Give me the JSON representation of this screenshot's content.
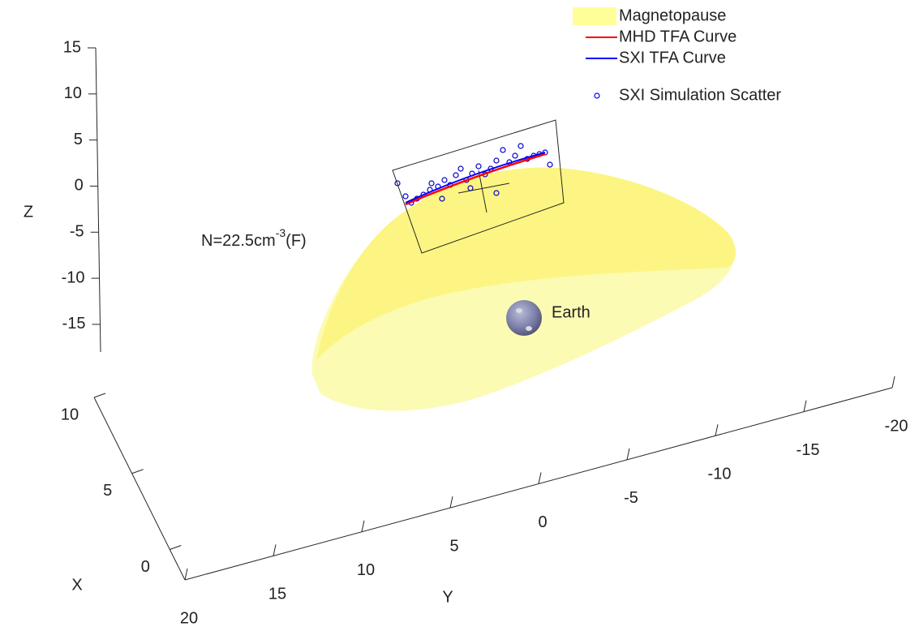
{
  "chart_data": {
    "type": "surface3d",
    "xlabel": "X",
    "ylabel": "Y",
    "zlabel": "Z",
    "xlim": [
      -2,
      10
    ],
    "xticks": [
      0,
      5,
      10
    ],
    "ylim": [
      20,
      -20
    ],
    "yticks": [
      20,
      15,
      10,
      5,
      0,
      -5,
      -10,
      -15,
      -20
    ],
    "zlim": [
      -18,
      15
    ],
    "zticks": [
      -15,
      -10,
      -5,
      0,
      5,
      10,
      15
    ],
    "series": [
      {
        "name": "Magnetopause",
        "color": "#ffff99",
        "kind": "patch"
      },
      {
        "name": "MHD TFA Curve",
        "color": "#ff0000",
        "kind": "line"
      },
      {
        "name": "SXI TFA Curve",
        "color": "#0000ff",
        "kind": "line"
      },
      {
        "name": "SXI Simulation Scatter",
        "color": "#0000ff",
        "kind": "marker"
      }
    ],
    "annotations": [
      {
        "text": "N=22.5cm",
        "superscript": "-3",
        "suffix": "(F)"
      },
      {
        "text": "Earth"
      }
    ]
  }
}
